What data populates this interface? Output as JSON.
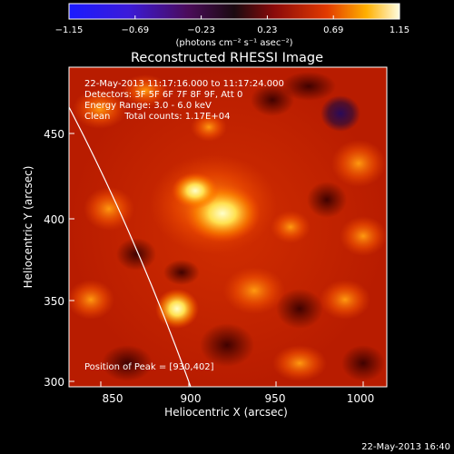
{
  "colorbar": {
    "ticks": [
      "−1.15",
      "−0.69",
      "−0.23",
      "0.23",
      "0.69",
      "1.15"
    ],
    "unit_label": "(photons cm⁻² s⁻¹ asec⁻²)",
    "range": [
      -1.15,
      1.15
    ]
  },
  "image": {
    "title": "Reconstructed RHESSI Image",
    "info_lines": [
      "22-May-2013 11:17:16.000 to 11:17:24.000",
      "Detectors: 3F 5F 6F 7F 8F 9F, Att 0",
      "Energy Range: 3.0 - 6.0 keV",
      "Clean     Total counts: 1.17E+04"
    ],
    "peak_label": "Position of Peak = [930,402]",
    "peak_position": [
      930,
      402
    ]
  },
  "axes": {
    "xlabel": "Heliocentric X (arcsec)",
    "ylabel": "Heliocentric Y (arcsec)",
    "x_ticks": [
      "850",
      "900",
      "950",
      "1000"
    ],
    "y_ticks": [
      "300",
      "350",
      "400",
      "450"
    ]
  },
  "footer": {
    "timestamp": "22-May-2013 16:40"
  },
  "colors": {
    "background": "#000000",
    "limb_line": "#ffffff"
  }
}
